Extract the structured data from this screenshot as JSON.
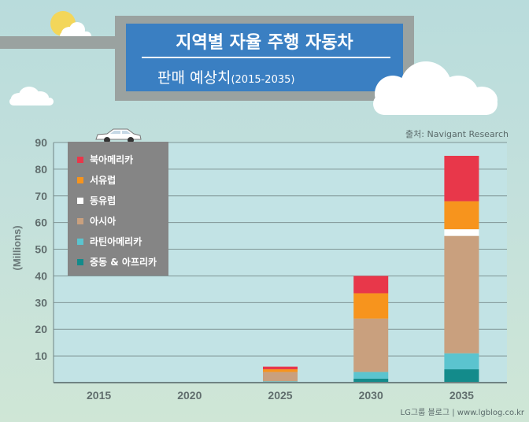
{
  "title": {
    "line1": "지역별 자율 주행 자동차",
    "line2": "판매 예상치",
    "years": "(2015-2035)"
  },
  "source": "출처: Navigant Research",
  "credit": "LG그룹 블로그  |  www.lgblog.co.kr",
  "colors": {
    "north_america": "#e8374a",
    "west_europe": "#f7941d",
    "east_europe": "#ffffff",
    "asia": "#c9a07e",
    "latin_america": "#5bc4cf",
    "middle_east_africa": "#138b8b"
  },
  "chart_data": {
    "type": "bar",
    "stacked": true,
    "categories": [
      "2015",
      "2020",
      "2025",
      "2030",
      "2035"
    ],
    "ylabel": "(Millions)",
    "ylim": [
      0,
      90
    ],
    "yticks": [
      "10",
      "20",
      "30",
      "40",
      "50",
      "60",
      "70",
      "80",
      "90"
    ],
    "grid": true,
    "legend_position": "top-left",
    "series": [
      {
        "name": "중동 & 아프리카",
        "color": "#138b8b",
        "values": [
          0,
          0,
          0,
          1.5,
          5
        ]
      },
      {
        "name": "라틴아메리카",
        "color": "#5bc4cf",
        "values": [
          0,
          0,
          0.5,
          2.5,
          6
        ]
      },
      {
        "name": "아시아",
        "color": "#c9a07e",
        "values": [
          0,
          0,
          3.5,
          20,
          44
        ]
      },
      {
        "name": "동유럽",
        "color": "#ffffff",
        "values": [
          0,
          0,
          0,
          0,
          2.5
        ]
      },
      {
        "name": "서유럽",
        "color": "#f7941d",
        "values": [
          0,
          0,
          1,
          9.5,
          10.5
        ]
      },
      {
        "name": "북아메리카",
        "color": "#e8374a",
        "values": [
          0,
          0,
          1,
          6.5,
          17
        ]
      }
    ]
  }
}
